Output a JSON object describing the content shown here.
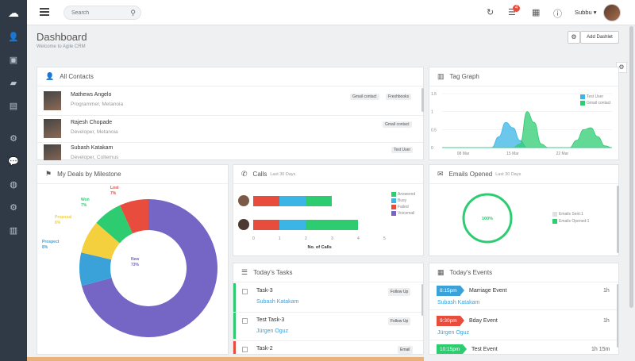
{
  "topbar": {
    "search_placeholder": "Search",
    "badge_count": "4",
    "user_name": "Subbu ▾"
  },
  "header": {
    "title": "Dashboard",
    "subtitle": "Welcome to Agile CRM",
    "add_dashlet": "Add Dashlet"
  },
  "sidebar": {
    "items": [
      "cloud-icon",
      "contacts-icon",
      "deals-icon",
      "folder-icon",
      "document-icon",
      "org-icon",
      "chat-icon",
      "globe-icon",
      "settings-icon",
      "reports-icon"
    ]
  },
  "contacts": {
    "title": "All Contacts",
    "rows": [
      {
        "name": "Mathews Angelo",
        "desc": "Programmer, Metanoia",
        "tags": [
          "Gmail contact",
          "Freshbooks"
        ]
      },
      {
        "name": "Rajesh Chopade",
        "desc": "Developer, Metanoia",
        "tags": [
          "Gmail contact"
        ]
      },
      {
        "name": "Subash Katakam",
        "desc": "Developer, Coltemus",
        "tags": [
          "Test User"
        ]
      }
    ]
  },
  "tag_graph": {
    "title": "Tag Graph",
    "legend": [
      "Test User",
      "Gmail contact"
    ]
  },
  "deals": {
    "title": "My Deals by Milestone"
  },
  "calls": {
    "title": "Calls",
    "range": "Last 30 Days",
    "legend": [
      "Answered",
      "Busy",
      "Failed",
      "Voicemail"
    ],
    "xlabel": "No. of Calls"
  },
  "emails": {
    "title": "Emails Opened",
    "range": "Last 30 Days",
    "center": "100%",
    "legend": [
      "Emails Sent:1",
      "Emails Opened:1"
    ]
  },
  "tasks": {
    "title": "Today's Tasks",
    "rows": [
      {
        "name": "Task-3",
        "contact": "Subash Katakam",
        "label": "Follow Up",
        "color": "#2ecc71"
      },
      {
        "name": "Test Task-3",
        "contact": "Jürgen Oguz",
        "label": "Follow Up",
        "color": "#2ecc71"
      },
      {
        "name": "Task-2",
        "contact": "",
        "label": "Email",
        "color": "#e74c3c"
      }
    ]
  },
  "events": {
    "title": "Today's Events",
    "rows": [
      {
        "time": "8:15pm",
        "name": "Marriage Event",
        "contact": "Subash Katakam",
        "dur": "1h",
        "color": "#3ba1d9"
      },
      {
        "time": "9:30pm",
        "name": "Bday Event",
        "contact": "Jürgen Oguz",
        "dur": "1h",
        "color": "#e74c3c"
      },
      {
        "time": "10:15pm",
        "name": "Test Event",
        "contact": "",
        "dur": "1h 15m",
        "color": "#2ecc71"
      }
    ]
  },
  "chart_data": [
    {
      "type": "area",
      "title": "Tag Graph",
      "x": [
        "05 Mar",
        "06 Mar",
        "07 Mar",
        "08 Mar",
        "09 Mar",
        "10 Mar",
        "11 Mar",
        "12 Mar",
        "13 Mar",
        "14 Mar",
        "15 Mar",
        "16 Mar",
        "17 Mar",
        "18 Mar",
        "19 Mar",
        "20 Mar",
        "21 Mar",
        "22 Mar",
        "23 Mar",
        "24 Mar",
        "25 Mar",
        "26 Mar",
        "27 Mar",
        "28 Mar",
        "29 Mar"
      ],
      "x_ticks": [
        "08 Mar",
        "15 Mar",
        "22 Mar"
      ],
      "y_ticks": [
        "0",
        "0.5",
        "1",
        "1.5"
      ],
      "series": [
        {
          "name": "Test User",
          "color": "#3bb4e6",
          "values": [
            0,
            0,
            0,
            0,
            0,
            0,
            0,
            0,
            0.3,
            0.7,
            0.55,
            0.2,
            0,
            0,
            0,
            0,
            0,
            0,
            0,
            0,
            0,
            0,
            0,
            0,
            0
          ]
        },
        {
          "name": "Gmail contact",
          "color": "#2ecc71",
          "values": [
            0,
            0,
            0,
            0,
            0,
            0,
            0,
            0,
            0,
            0,
            0,
            0.1,
            1.0,
            0.7,
            0.1,
            0,
            0,
            0,
            0,
            0.2,
            0.5,
            0.55,
            0.3,
            0.05,
            0
          ]
        }
      ],
      "ylim": [
        0,
        1.5
      ]
    },
    {
      "type": "pie",
      "title": "My Deals by Milestone",
      "categories": [
        "New",
        "Prospect",
        "Proposal",
        "Won",
        "Lost"
      ],
      "values": [
        73,
        8,
        8,
        7,
        7
      ],
      "labels": [
        "New 73%",
        "Prospect 8%",
        "Proposal 8%",
        "Won 7%",
        "Lost 7%"
      ],
      "colors": [
        "#7566c6",
        "#3ba1d9",
        "#f4d03f",
        "#2ecc71",
        "#e74c3c"
      ]
    },
    {
      "type": "bar",
      "title": "Calls",
      "orientation": "horizontal",
      "stacked": true,
      "categories": [
        "user-1",
        "user-2"
      ],
      "series": [
        {
          "name": "Answered",
          "color": "#2ecc71",
          "values": [
            1,
            2
          ]
        },
        {
          "name": "Busy",
          "color": "#3bb4e6",
          "values": [
            1,
            1
          ]
        },
        {
          "name": "Failed",
          "color": "#e74c3c",
          "values": [
            1,
            1
          ]
        },
        {
          "name": "Voicemail",
          "color": "#7566c6",
          "values": [
            0,
            0
          ]
        }
      ],
      "x_ticks": [
        "0",
        "1",
        "2",
        "3",
        "4",
        "5"
      ],
      "xlabel": "No. of Calls",
      "xlim": [
        0,
        5
      ]
    },
    {
      "type": "pie",
      "title": "Emails Opened",
      "categories": [
        "Emails Sent",
        "Emails Opened"
      ],
      "values": [
        0,
        1
      ],
      "center_label": "100%",
      "colors": [
        "#e0e0e0",
        "#2ecc71"
      ]
    }
  ]
}
